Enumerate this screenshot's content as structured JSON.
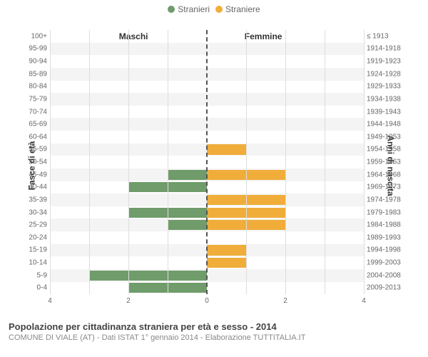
{
  "legend": {
    "male": {
      "label": "Stranieri",
      "color": "#6f9c6a"
    },
    "female": {
      "label": "Straniere",
      "color": "#f0ad3a"
    }
  },
  "columns": {
    "male": "Maschi",
    "female": "Femmine"
  },
  "axis": {
    "left": "Fasce di età",
    "right": "Anni di nascita"
  },
  "x": {
    "max": 4,
    "ticks_left": [
      4,
      2,
      0
    ],
    "ticks_right": [
      2,
      4
    ]
  },
  "style": {
    "alt_row_bg": "#f4f4f4",
    "grid_color": "#dddddd",
    "center_dash": "#555555"
  },
  "rows": [
    {
      "age": "100+",
      "birth": "≤ 1913",
      "m": 0,
      "f": 0
    },
    {
      "age": "95-99",
      "birth": "1914-1918",
      "m": 0,
      "f": 0
    },
    {
      "age": "90-94",
      "birth": "1919-1923",
      "m": 0,
      "f": 0
    },
    {
      "age": "85-89",
      "birth": "1924-1928",
      "m": 0,
      "f": 0
    },
    {
      "age": "80-84",
      "birth": "1929-1933",
      "m": 0,
      "f": 0
    },
    {
      "age": "75-79",
      "birth": "1934-1938",
      "m": 0,
      "f": 0
    },
    {
      "age": "70-74",
      "birth": "1939-1943",
      "m": 0,
      "f": 0
    },
    {
      "age": "65-69",
      "birth": "1944-1948",
      "m": 0,
      "f": 0
    },
    {
      "age": "60-64",
      "birth": "1949-1953",
      "m": 0,
      "f": 0
    },
    {
      "age": "55-59",
      "birth": "1954-1958",
      "m": 0,
      "f": 1
    },
    {
      "age": "50-54",
      "birth": "1959-1963",
      "m": 0,
      "f": 0
    },
    {
      "age": "45-49",
      "birth": "1964-1968",
      "m": 1,
      "f": 2
    },
    {
      "age": "40-44",
      "birth": "1969-1973",
      "m": 2,
      "f": 0
    },
    {
      "age": "35-39",
      "birth": "1974-1978",
      "m": 0,
      "f": 2
    },
    {
      "age": "30-34",
      "birth": "1979-1983",
      "m": 2,
      "f": 2
    },
    {
      "age": "25-29",
      "birth": "1984-1988",
      "m": 1,
      "f": 2
    },
    {
      "age": "20-24",
      "birth": "1989-1993",
      "m": 0,
      "f": 0
    },
    {
      "age": "15-19",
      "birth": "1994-1998",
      "m": 0,
      "f": 1
    },
    {
      "age": "10-14",
      "birth": "1999-2003",
      "m": 0,
      "f": 1
    },
    {
      "age": "5-9",
      "birth": "2004-2008",
      "m": 3,
      "f": 0
    },
    {
      "age": "0-4",
      "birth": "2009-2013",
      "m": 2,
      "f": 0
    }
  ],
  "footer": {
    "title": "Popolazione per cittadinanza straniera per età e sesso - 2014",
    "sub": "COMUNE DI VIALE (AT) - Dati ISTAT 1° gennaio 2014 - Elaborazione TUTTITALIA.IT"
  }
}
